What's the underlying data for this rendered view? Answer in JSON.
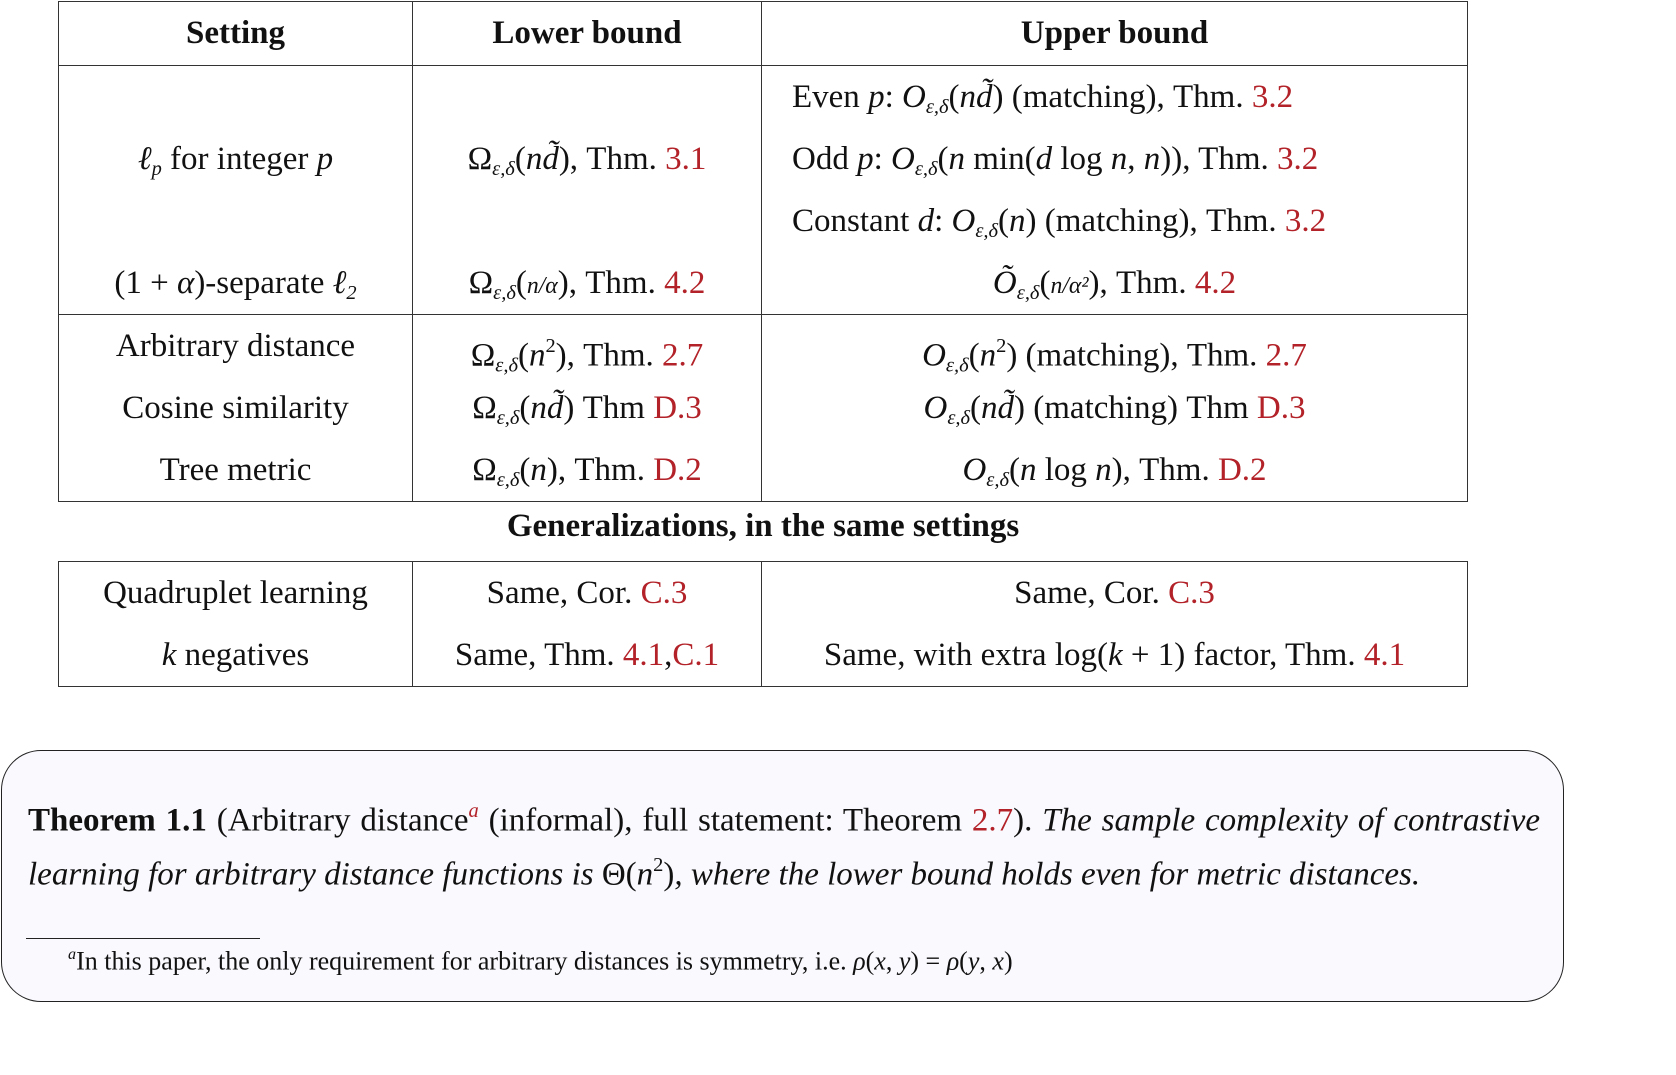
{
  "table1": {
    "headers": [
      "Setting",
      "Lower bound",
      "Upper bound"
    ],
    "rows": [
      {
        "setting": [],
        "lower": [],
        "upper": [
          {
            "t": "Even ",
            "f": "r"
          },
          {
            "t": "p",
            "f": "i"
          },
          {
            "t": ": ",
            "f": "r"
          },
          {
            "t": "O",
            "f": "i"
          },
          {
            "t": "ε,δ",
            "f": "sub"
          },
          {
            "t": "(",
            "f": "r"
          },
          {
            "t": "nd̃",
            "f": "i"
          },
          {
            "t": ") (matching), Thm. ",
            "f": "r"
          },
          {
            "t": "3.2",
            "f": "ref"
          }
        ],
        "upper_align": "left"
      },
      {
        "setting": [
          {
            "t": "ℓ",
            "f": "i"
          },
          {
            "t": "p",
            "f": "sub"
          },
          {
            "t": " for integer ",
            "f": "r"
          },
          {
            "t": "p",
            "f": "i"
          }
        ],
        "lower": [
          {
            "t": "Ω",
            "f": "r"
          },
          {
            "t": "ε,δ",
            "f": "sub"
          },
          {
            "t": "(",
            "f": "r"
          },
          {
            "t": "nd̃",
            "f": "i"
          },
          {
            "t": "), Thm. ",
            "f": "r"
          },
          {
            "t": "3.1",
            "f": "ref"
          }
        ],
        "upper": [
          {
            "t": "Odd ",
            "f": "r"
          },
          {
            "t": "p",
            "f": "i"
          },
          {
            "t": ": ",
            "f": "r"
          },
          {
            "t": "O",
            "f": "i"
          },
          {
            "t": "ε,δ",
            "f": "sub"
          },
          {
            "t": "(",
            "f": "r"
          },
          {
            "t": "n",
            "f": "i"
          },
          {
            "t": " min(",
            "f": "r"
          },
          {
            "t": "d",
            "f": "i"
          },
          {
            "t": " log ",
            "f": "r"
          },
          {
            "t": "n",
            "f": "i"
          },
          {
            "t": ", ",
            "f": "r"
          },
          {
            "t": "n",
            "f": "i"
          },
          {
            "t": ")), Thm. ",
            "f": "r"
          },
          {
            "t": "3.2",
            "f": "ref"
          }
        ],
        "upper_align": "left"
      },
      {
        "setting": [],
        "lower": [],
        "upper": [
          {
            "t": "Constant ",
            "f": "r"
          },
          {
            "t": "d",
            "f": "i"
          },
          {
            "t": ": ",
            "f": "r"
          },
          {
            "t": "O",
            "f": "i"
          },
          {
            "t": "ε,δ",
            "f": "sub"
          },
          {
            "t": "(",
            "f": "r"
          },
          {
            "t": "n",
            "f": "i"
          },
          {
            "t": ") (matching), Thm. ",
            "f": "r"
          },
          {
            "t": "3.2",
            "f": "ref"
          }
        ],
        "upper_align": "left"
      },
      {
        "setting": [
          {
            "t": "(1 + ",
            "f": "r"
          },
          {
            "t": "α",
            "f": "i"
          },
          {
            "t": ")-separate ",
            "f": "r"
          },
          {
            "t": "ℓ",
            "f": "i"
          },
          {
            "t": "2",
            "f": "sub"
          }
        ],
        "lower": [
          {
            "t": "Ω",
            "f": "r"
          },
          {
            "t": "ε,δ",
            "f": "sub"
          },
          {
            "t": "(",
            "f": "r"
          },
          {
            "t": "n/α",
            "f": "frac"
          },
          {
            "t": "), Thm. ",
            "f": "r"
          },
          {
            "t": "4.2",
            "f": "ref"
          }
        ],
        "upper": [
          {
            "t": "Õ",
            "f": "i"
          },
          {
            "t": "ε,δ",
            "f": "sub"
          },
          {
            "t": "(",
            "f": "r"
          },
          {
            "t": "n/α²",
            "f": "frac"
          },
          {
            "t": "), Thm. ",
            "f": "r"
          },
          {
            "t": "4.2",
            "f": "ref"
          }
        ],
        "upper_align": "center",
        "separator": true
      },
      {
        "setting": [
          {
            "t": "Arbitrary distance",
            "f": "r"
          }
        ],
        "lower": [
          {
            "t": "Ω",
            "f": "r"
          },
          {
            "t": "ε,δ",
            "f": "sub"
          },
          {
            "t": "(",
            "f": "r"
          },
          {
            "t": "n",
            "f": "i"
          },
          {
            "t": "2",
            "f": "sup"
          },
          {
            "t": "), Thm. ",
            "f": "r"
          },
          {
            "t": "2.7",
            "f": "ref"
          }
        ],
        "upper": [
          {
            "t": "O",
            "f": "i"
          },
          {
            "t": "ε,δ",
            "f": "sub"
          },
          {
            "t": "(",
            "f": "r"
          },
          {
            "t": "n",
            "f": "i"
          },
          {
            "t": "2",
            "f": "sup"
          },
          {
            "t": ") (matching), Thm. ",
            "f": "r"
          },
          {
            "t": "2.7",
            "f": "ref"
          }
        ],
        "upper_align": "center"
      },
      {
        "setting": [
          {
            "t": "Cosine similarity",
            "f": "r"
          }
        ],
        "lower": [
          {
            "t": "Ω",
            "f": "r"
          },
          {
            "t": "ε,δ",
            "f": "sub"
          },
          {
            "t": "(",
            "f": "r"
          },
          {
            "t": "nd̃",
            "f": "i"
          },
          {
            "t": ") Thm ",
            "f": "r"
          },
          {
            "t": "D.3",
            "f": "ref"
          }
        ],
        "upper": [
          {
            "t": "O",
            "f": "i"
          },
          {
            "t": "ε,δ",
            "f": "sub"
          },
          {
            "t": "(",
            "f": "r"
          },
          {
            "t": "nd̃",
            "f": "i"
          },
          {
            "t": ") (matching) Thm ",
            "f": "r"
          },
          {
            "t": "D.3",
            "f": "ref"
          }
        ],
        "upper_align": "center"
      },
      {
        "setting": [
          {
            "t": "Tree metric",
            "f": "r"
          }
        ],
        "lower": [
          {
            "t": "Ω",
            "f": "r"
          },
          {
            "t": "ε,δ",
            "f": "sub"
          },
          {
            "t": "(",
            "f": "r"
          },
          {
            "t": "n",
            "f": "i"
          },
          {
            "t": "), Thm. ",
            "f": "r"
          },
          {
            "t": "D.2",
            "f": "ref"
          }
        ],
        "upper": [
          {
            "t": "O",
            "f": "i"
          },
          {
            "t": "ε,δ",
            "f": "sub"
          },
          {
            "t": "(",
            "f": "r"
          },
          {
            "t": "n",
            "f": "i"
          },
          {
            "t": " log ",
            "f": "r"
          },
          {
            "t": "n",
            "f": "i"
          },
          {
            "t": "), Thm. ",
            "f": "r"
          },
          {
            "t": "D.2",
            "f": "ref"
          }
        ],
        "upper_align": "center"
      }
    ]
  },
  "caption": "Generalizations, in the same settings",
  "table2": {
    "rows": [
      {
        "setting": [
          {
            "t": "Quadruplet learning",
            "f": "r"
          }
        ],
        "lower": [
          {
            "t": "Same, Cor. ",
            "f": "r"
          },
          {
            "t": "C.3",
            "f": "ref"
          }
        ],
        "upper": [
          {
            "t": "Same, Cor. ",
            "f": "r"
          },
          {
            "t": "C.3",
            "f": "ref"
          }
        ],
        "upper_align": "center"
      },
      {
        "setting": [
          {
            "t": "k",
            "f": "i"
          },
          {
            "t": " negatives",
            "f": "r"
          }
        ],
        "lower": [
          {
            "t": "Same, Thm. ",
            "f": "r"
          },
          {
            "t": "4.1",
            "f": "ref"
          },
          {
            "t": ",",
            "f": "r"
          },
          {
            "t": "C.1",
            "f": "ref"
          }
        ],
        "upper": [
          {
            "t": "Same, with extra log(",
            "f": "r"
          },
          {
            "t": "k",
            "f": "i"
          },
          {
            "t": " + 1) factor, Thm. ",
            "f": "r"
          },
          {
            "t": "4.1",
            "f": "ref"
          }
        ],
        "upper_align": "center"
      }
    ]
  },
  "theorem": {
    "body": [
      {
        "t": "Theorem 1.1",
        "f": "b"
      },
      {
        "t": " (Arbitrary distance",
        "f": "r"
      },
      {
        "t": "a",
        "f": "supref"
      },
      {
        "t": " (informal), full statement: Theorem ",
        "f": "r"
      },
      {
        "t": "2.7",
        "f": "ref"
      },
      {
        "t": ").",
        "f": "r"
      },
      {
        "t": " The sample com­plexity of contrastive learning for arbitrary distance functions is ",
        "f": "i"
      },
      {
        "t": "Θ(",
        "f": "r"
      },
      {
        "t": "n",
        "f": "i"
      },
      {
        "t": "2",
        "f": "sup"
      },
      {
        "t": ")",
        "f": "r"
      },
      {
        "t": ", where the lower bound holds even for metric distances.",
        "f": "i"
      }
    ],
    "footnote": [
      {
        "t": "a",
        "f": "supi"
      },
      {
        "t": "In this paper, the only requirement for arbitrary distances is symmetry, i.e. ",
        "f": "r"
      },
      {
        "t": "ρ",
        "f": "i"
      },
      {
        "t": "(",
        "f": "r"
      },
      {
        "t": "x",
        "f": "i"
      },
      {
        "t": ", ",
        "f": "r"
      },
      {
        "t": "y",
        "f": "i"
      },
      {
        "t": ") = ",
        "f": "r"
      },
      {
        "t": "ρ",
        "f": "i"
      },
      {
        "t": "(",
        "f": "r"
      },
      {
        "t": "y",
        "f": "i"
      },
      {
        "t": ", ",
        "f": "r"
      },
      {
        "t": "x",
        "f": "i"
      },
      {
        "t": ")",
        "f": "r"
      }
    ]
  },
  "colors": {
    "link": "#b22228",
    "box_bg": "#f9f9fe",
    "border": "#333333"
  }
}
